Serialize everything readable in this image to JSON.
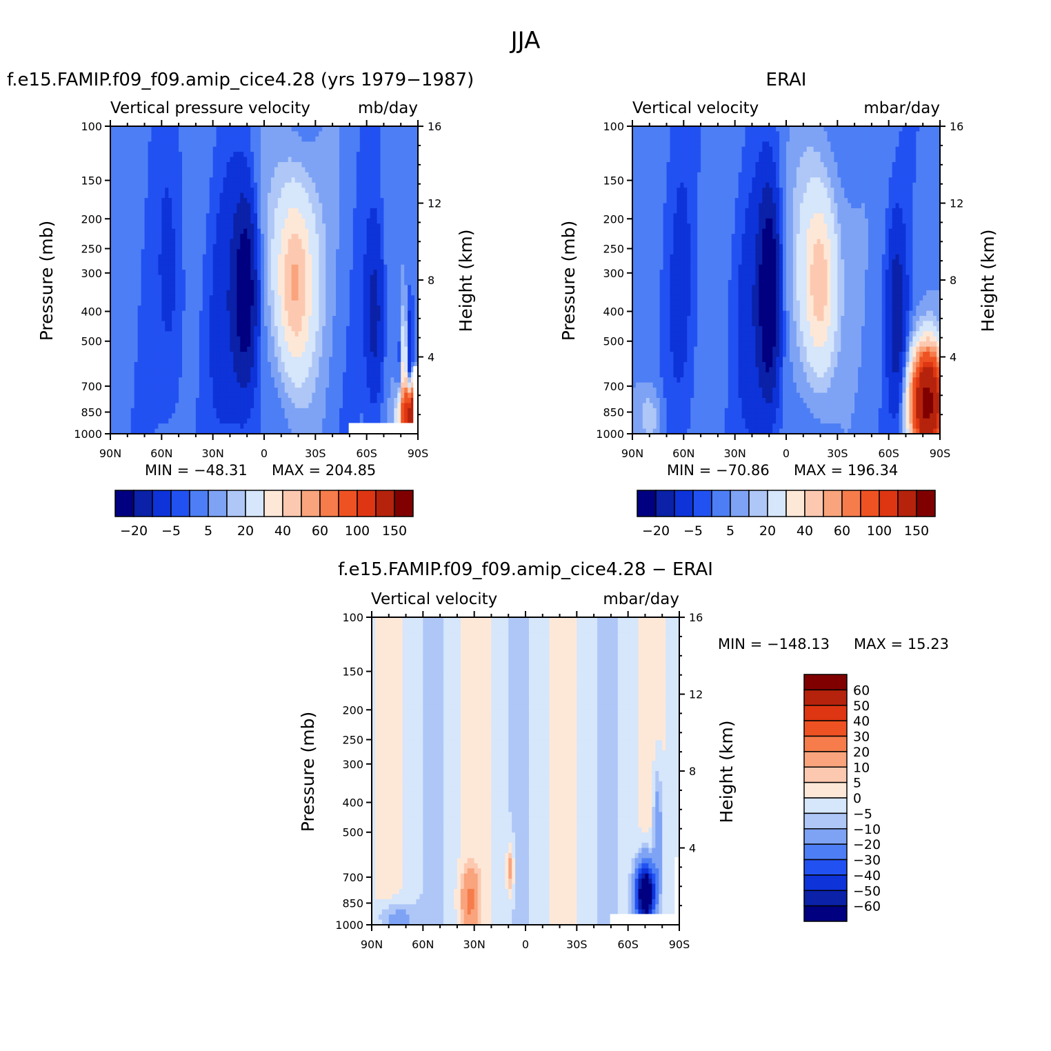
{
  "title": "JJA",
  "chart_data": [
    {
      "type": "heatmap",
      "title": "f.e15.FAMIP.f09_f09.amip_cice4.28 (yrs 1979−1987)",
      "subtitle_left": "Vertical pressure velocity",
      "subtitle_right": "mb/day",
      "xlabel": "",
      "ylabel": "Pressure (mb)",
      "ylabel_right": "Height (km)",
      "x_ticks": [
        "90N",
        "60N",
        "30N",
        "0",
        "30S",
        "60S",
        "90S"
      ],
      "y_ticks": [
        "100",
        "150",
        "200",
        "250",
        "300",
        "400",
        "500",
        "700",
        "850",
        "1000"
      ],
      "y_right_ticks": [
        "16",
        "12",
        "8",
        "4"
      ],
      "xlim": [
        90,
        -90
      ],
      "ylim": [
        1000,
        100
      ],
      "y_scale": "log",
      "min_label": "MIN = −48.31",
      "max_label": "MAX = 204.85",
      "colorbar_labels": [
        "−20",
        "−5",
        "5",
        "20",
        "40",
        "60",
        "100",
        "150"
      ],
      "colors": [
        "#000080",
        "#0a21a8",
        "#0d33d9",
        "#2251f2",
        "#4d7ef5",
        "#7ea3f5",
        "#aec7f7",
        "#d6e6fb",
        "#fde8d8",
        "#fcc9b0",
        "#f9a47c",
        "#f67c4b",
        "#ef5222",
        "#de3612",
        "#b5230c",
        "#800000"
      ]
    },
    {
      "type": "heatmap",
      "title": "ERAI",
      "subtitle_left": "Vertical velocity",
      "subtitle_right": "mbar/day",
      "xlabel": "",
      "ylabel": "Pressure (mb)",
      "ylabel_right": "Height (km)",
      "x_ticks": [
        "90N",
        "60N",
        "30N",
        "0",
        "30S",
        "60S",
        "90S"
      ],
      "y_ticks": [
        "100",
        "150",
        "200",
        "250",
        "300",
        "400",
        "500",
        "700",
        "850",
        "1000"
      ],
      "y_right_ticks": [
        "16",
        "12",
        "8",
        "4"
      ],
      "xlim": [
        90,
        -90
      ],
      "ylim": [
        1000,
        100
      ],
      "y_scale": "log",
      "min_label": "MIN = −70.86",
      "max_label": "MAX = 196.34",
      "colorbar_labels": [
        "−20",
        "−5",
        "5",
        "20",
        "40",
        "60",
        "100",
        "150"
      ],
      "colors": [
        "#000080",
        "#0a21a8",
        "#0d33d9",
        "#2251f2",
        "#4d7ef5",
        "#7ea3f5",
        "#aec7f7",
        "#d6e6fb",
        "#fde8d8",
        "#fcc9b0",
        "#f9a47c",
        "#f67c4b",
        "#ef5222",
        "#de3612",
        "#b5230c",
        "#800000"
      ]
    },
    {
      "type": "heatmap",
      "title": "f.e15.FAMIP.f09_f09.amip_cice4.28 − ERAI",
      "subtitle_left": "Vertical velocity",
      "subtitle_right": "mbar/day",
      "xlabel": "",
      "ylabel": "Pressure (mb)",
      "ylabel_right": "Height (km)",
      "x_ticks": [
        "90N",
        "60N",
        "30N",
        "0",
        "30S",
        "60S",
        "90S"
      ],
      "y_ticks": [
        "100",
        "150",
        "200",
        "250",
        "300",
        "400",
        "500",
        "700",
        "850",
        "1000"
      ],
      "y_right_ticks": [
        "16",
        "12",
        "8",
        "4"
      ],
      "xlim": [
        90,
        -90
      ],
      "ylim": [
        1000,
        100
      ],
      "y_scale": "log",
      "min_label": "MIN = −148.13",
      "max_label": "MAX =  15.23",
      "colorbar_labels": [
        "60",
        "50",
        "40",
        "30",
        "20",
        "10",
        "5",
        "0",
        "−5",
        "−10",
        "−20",
        "−30",
        "−40",
        "−50",
        "−60"
      ],
      "colors": [
        "#800000",
        "#b5230c",
        "#de3612",
        "#ef5222",
        "#f67c4b",
        "#f9a47c",
        "#fcc9b0",
        "#fde8d8",
        "#d6e6fb",
        "#aec7f7",
        "#7ea3f5",
        "#4d7ef5",
        "#2251f2",
        "#0d33d9",
        "#0a21a8",
        "#000080"
      ]
    }
  ]
}
